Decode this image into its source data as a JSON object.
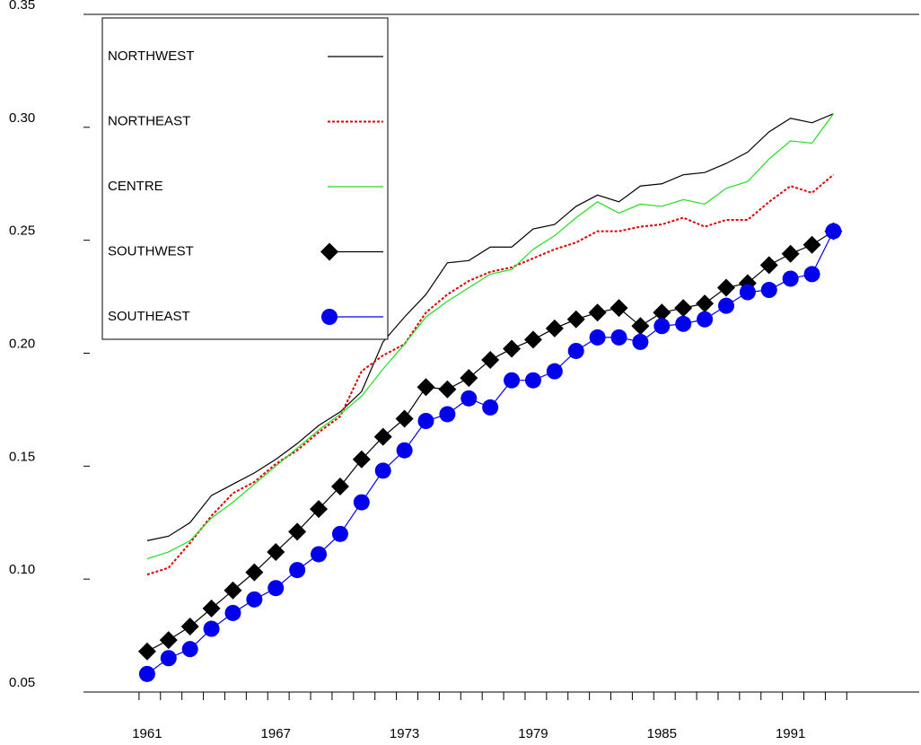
{
  "chart_data": {
    "type": "line",
    "x": [
      1961,
      1962,
      1963,
      1964,
      1965,
      1966,
      1967,
      1968,
      1969,
      1970,
      1971,
      1972,
      1973,
      1974,
      1975,
      1976,
      1977,
      1978,
      1979,
      1980,
      1981,
      1982,
      1983,
      1984,
      1985,
      1986,
      1987,
      1988,
      1989,
      1990,
      1991,
      1992,
      1993
    ],
    "xlim": [
      1958.2,
      1997
    ],
    "xticks": [
      1961,
      1967,
      1973,
      1979,
      1985,
      1991
    ],
    "xminorticks": [
      1961,
      1962,
      1963,
      1964,
      1965,
      1966,
      1967,
      1968,
      1969,
      1970,
      1971,
      1972,
      1973,
      1974,
      1975,
      1976,
      1977,
      1978,
      1979,
      1980,
      1981,
      1982,
      1983,
      1984,
      1985,
      1986,
      1987,
      1988,
      1989,
      1990,
      1991,
      1992,
      1993,
      1994
    ],
    "ylim": [
      0.05,
      0.35
    ],
    "yticks": [
      {
        "value": 0.05,
        "label": "0.05"
      },
      {
        "value": 0.1,
        "label": "0.10"
      },
      {
        "value": 0.15,
        "label": "0.15"
      },
      {
        "value": 0.2,
        "label": "0.20"
      },
      {
        "value": 0.25,
        "label": "0.25"
      },
      {
        "value": 0.3,
        "label": "0.30"
      },
      {
        "value": 0.35,
        "label": "0.35"
      }
    ],
    "legend": "upper left",
    "series": [
      {
        "name": "NORTHWEST",
        "color": "#000000",
        "style": "solid",
        "marker": "none",
        "values": [
          0.117,
          0.119,
          0.125,
          0.137,
          0.142,
          0.147,
          0.153,
          0.16,
          0.168,
          0.174,
          0.183,
          0.205,
          0.216,
          0.226,
          0.24,
          0.241,
          0.247,
          0.247,
          0.255,
          0.257,
          0.265,
          0.27,
          0.267,
          0.274,
          0.275,
          0.279,
          0.28,
          0.284,
          0.289,
          0.298,
          0.304,
          0.302,
          0.306
        ]
      },
      {
        "name": "NORTHEAST",
        "color": "#dd0000",
        "style": "dotted",
        "marker": "none",
        "values": [
          0.102,
          0.105,
          0.116,
          0.128,
          0.138,
          0.143,
          0.151,
          0.157,
          0.165,
          0.172,
          0.192,
          0.199,
          0.204,
          0.218,
          0.226,
          0.232,
          0.236,
          0.238,
          0.242,
          0.246,
          0.249,
          0.254,
          0.254,
          0.256,
          0.257,
          0.26,
          0.256,
          0.259,
          0.259,
          0.267,
          0.274,
          0.271,
          0.279
        ]
      },
      {
        "name": "CENTRE",
        "color": "#22dd22",
        "style": "solid",
        "marker": "none",
        "values": [
          0.109,
          0.112,
          0.117,
          0.127,
          0.134,
          0.142,
          0.15,
          0.158,
          0.166,
          0.173,
          0.181,
          0.193,
          0.204,
          0.216,
          0.223,
          0.229,
          0.235,
          0.237,
          0.246,
          0.252,
          0.26,
          0.267,
          0.262,
          0.266,
          0.265,
          0.268,
          0.266,
          0.273,
          0.276,
          0.286,
          0.294,
          0.293,
          0.306
        ]
      },
      {
        "name": "SOUTHWEST",
        "color": "#000000",
        "style": "solid",
        "marker": "diamond",
        "values": [
          0.068,
          0.073,
          0.079,
          0.087,
          0.095,
          0.103,
          0.112,
          0.121,
          0.131,
          0.141,
          0.153,
          0.163,
          0.171,
          0.185,
          0.184,
          0.189,
          0.197,
          0.202,
          0.206,
          0.211,
          0.215,
          0.218,
          0.22,
          0.212,
          0.218,
          0.22,
          0.222,
          0.229,
          0.231,
          0.239,
          0.244,
          0.248,
          0.254
        ]
      },
      {
        "name": "SOUTHEAST",
        "color": "#0000ee",
        "style": "solid",
        "marker": "circle",
        "values": [
          0.058,
          0.065,
          0.069,
          0.078,
          0.085,
          0.091,
          0.096,
          0.104,
          0.111,
          0.12,
          0.134,
          0.148,
          0.157,
          0.17,
          0.173,
          0.18,
          0.176,
          0.188,
          0.188,
          0.192,
          0.201,
          0.207,
          0.207,
          0.205,
          0.212,
          0.213,
          0.215,
          0.221,
          0.227,
          0.228,
          0.233,
          0.235,
          0.254
        ]
      }
    ]
  }
}
